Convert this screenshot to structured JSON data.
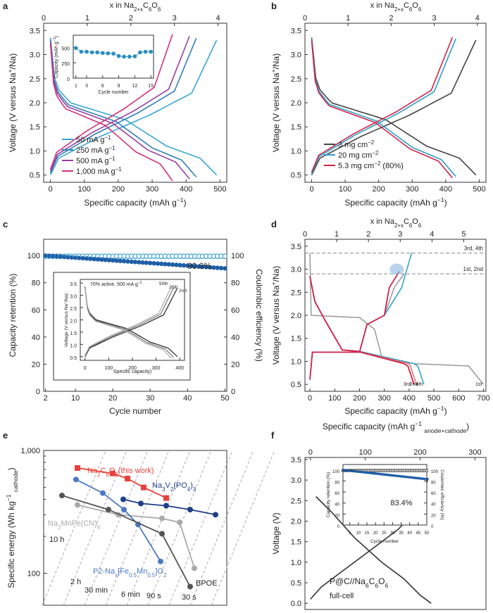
{
  "chart_data": [
    {
      "panel": "a",
      "type": "line",
      "top_axis": {
        "label": "x in Na2+xC6O6",
        "ticks": [
          0,
          1,
          2,
          3,
          4
        ],
        "range": [
          0,
          4.2
        ]
      },
      "xlabel": "Specific capacity (mAh g-1)",
      "ylabel": "Voltage (V versus Na+/Na)",
      "xlim": [
        -20,
        520
      ],
      "ylim": [
        0.35,
        3.65
      ],
      "xticks": [
        0,
        100,
        200,
        300,
        400,
        500
      ],
      "yticks": [
        0.5,
        1.0,
        1.5,
        2.0,
        2.5,
        3.0,
        3.5
      ],
      "legend": "bottom-left",
      "series": [
        {
          "name": "50 mA g-1",
          "color": "#3aa6d6",
          "capacity": 490
        },
        {
          "name": "250 mA g-1",
          "color": "#2f7fb8",
          "capacity": 430
        },
        {
          "name": "500 mA g-1",
          "color": "#9a3fa0",
          "capacity": 410
        },
        {
          "name": "1,000 mA g-1",
          "color": "#d2337c",
          "capacity": 360
        }
      ],
      "inset": {
        "type": "scatter",
        "xlabel": "Cycle number",
        "ylabel": "Capacity (mAh g-1)",
        "xticks": [
          1,
          3,
          6,
          9,
          12,
          15
        ],
        "yticks": [
          0,
          250,
          500
        ],
        "x": [
          1,
          2,
          3,
          4,
          5,
          6,
          7,
          8,
          9,
          10,
          11,
          12,
          13,
          14,
          15
        ],
        "y": [
          490,
          430,
          430,
          420,
          420,
          410,
          405,
          400,
          360,
          350,
          350,
          355,
          420,
          430,
          430
        ]
      }
    },
    {
      "panel": "b",
      "type": "line",
      "top_axis": {
        "label": "x in Na2+xC6O6",
        "ticks": [
          0,
          1,
          2,
          3,
          4
        ],
        "range": [
          0,
          4.2
        ]
      },
      "xlabel": "Specific capacity (mAh g-1)",
      "ylabel": "Voltage (V versus Na+/Na)",
      "xlim": [
        -20,
        520
      ],
      "ylim": [
        0.35,
        3.65
      ],
      "xticks": [
        0,
        100,
        200,
        300,
        400,
        500
      ],
      "yticks": [
        0.5,
        1.0,
        1.5,
        2.0,
        2.5,
        3.0,
        3.5
      ],
      "legend": "bottom-left",
      "series": [
        {
          "name": "3 mg cm-2",
          "color": "#444444",
          "capacity": 490
        },
        {
          "name": "20 mg cm-2",
          "color": "#2aa0c8",
          "capacity": 430
        },
        {
          "name": "5.3 mg cm-2 (80%)",
          "color": "#d2234a",
          "capacity": 420
        }
      ]
    },
    {
      "panel": "c",
      "type": "scatter",
      "xlabel": "Cycle number",
      "ylabel": "Capacity retention (%)",
      "y2label": "Coulombic efficiency (%)",
      "xlim": [
        1.5,
        50.5
      ],
      "ylim": [
        0,
        112
      ],
      "y2lim": [
        0,
        112
      ],
      "xticks": [
        2,
        10,
        20,
        30,
        40,
        50
      ],
      "yticks": [
        0,
        20,
        40,
        60,
        80,
        100
      ],
      "y2ticks": [
        0,
        20,
        40,
        60,
        80,
        100
      ],
      "annotation": "90.6%",
      "series": [
        {
          "name": "Capacity retention",
          "axis": "left",
          "color": "#1f5fa8",
          "start": 100,
          "end": 90.6
        },
        {
          "name": "Coulombic efficiency",
          "axis": "right",
          "color": "#4aa8cf",
          "value": 99.5
        }
      ],
      "inset": {
        "label": "70% active, 500 mA g-1",
        "xlabel": "Specific capacity (mAh g-1)",
        "ylabel": "Voltage (V versus Na+/Na)",
        "xticks": [
          0,
          100,
          200,
          300,
          400
        ],
        "yticks": [
          0.5,
          1.0,
          1.5,
          2.0,
          2.5,
          3.0,
          3.5
        ],
        "series": [
          {
            "name": "2nd",
            "color": "#222222",
            "capacity": 390
          },
          {
            "name": "25th",
            "color": "#777777",
            "capacity": 375
          },
          {
            "name": "50th",
            "color": "#aaaaaa",
            "capacity": 365
          }
        ]
      }
    },
    {
      "panel": "d",
      "type": "line",
      "top_axis": {
        "label": "x in Na2+xC6O6",
        "ticks": [
          0,
          1,
          2,
          3,
          4,
          5
        ],
        "range": [
          0,
          5.7
        ]
      },
      "xlabel": "Specific capacity (mAh g-1)",
      "ylabel": "Voltage (V versus Na+/Na)",
      "xlim": [
        -20,
        710
      ],
      "ylim": [
        0.35,
        3.65
      ],
      "xticks": [
        0,
        100,
        200,
        300,
        400,
        500,
        600,
        700
      ],
      "yticks": [
        0.5,
        1.0,
        1.5,
        2.0,
        2.5,
        3.0,
        3.5
      ],
      "guides": [
        {
          "y": 3.35,
          "label": "3rd, 4th"
        },
        {
          "y": 2.9,
          "label": "1st, 2nd"
        }
      ],
      "curve_labels": [
        "3rd",
        "2nd",
        "4th",
        "1st"
      ],
      "series": [
        {
          "name": "1st",
          "color": "#999999"
        },
        {
          "name": "2nd",
          "color": "#d2234a"
        },
        {
          "name": "3rd",
          "color": "#e07070"
        },
        {
          "name": "4th",
          "color": "#2aa0c8"
        }
      ]
    },
    {
      "panel": "e",
      "type": "scatter",
      "ylabel": "Specific energy (Wh kg-1 cathode)",
      "yscale": "log",
      "ylim": [
        55,
        1000
      ],
      "yticks": [
        100,
        1000
      ],
      "ytick_labels": [
        "100",
        "1,000"
      ],
      "rate_lines": [
        "10 h",
        "2 h",
        "30 min",
        "6 min",
        "90 s",
        "30 s"
      ],
      "series": [
        {
          "name": "Na2C6O6 (this work)",
          "color": "#e8413c",
          "marker": "square",
          "values": [
            720,
            650,
            590,
            500,
            410
          ]
        },
        {
          "name": "Na3V2(PO4)3",
          "color": "#1f3f8a",
          "marker": "circle",
          "values": [
            400,
            370,
            355,
            330,
            300
          ]
        },
        {
          "name": "Na2MnFe(CN)6",
          "color": "#aaaaaa",
          "marker": "circle",
          "values": [
            360,
            300,
            280,
            260,
            110
          ]
        },
        {
          "name": "P2-Nax[Fe0.5Mn0.5]O2",
          "color": "#4a78c4",
          "marker": "circle",
          "values": [
            580,
            450,
            330,
            250,
            125
          ]
        },
        {
          "name": "BPOE",
          "color": "#555555",
          "marker": "circle",
          "values": [
            430,
            330,
            210,
            78
          ]
        }
      ]
    },
    {
      "panel": "f",
      "type": "line",
      "top_axis": {
        "label": "Specific capacity (mAh g-1 anode+cathode)",
        "ticks": [
          0,
          100,
          200,
          300
        ],
        "range": [
          -10,
          320
        ]
      },
      "ylabel": "Voltage (V)",
      "ylim": [
        -0.15,
        3.55
      ],
      "yticks": [
        0.0,
        0.5,
        1.0,
        1.5,
        2.0,
        2.5,
        3.0,
        3.5
      ],
      "label": "P@C//Na6C6O6 full-cell",
      "series": [
        {
          "name": "full-cell",
          "color": "#333333"
        }
      ],
      "inset": {
        "xlabel": "Cycle number",
        "ylabel": "Capacity retention (%)",
        "y2label": "Coulombic efficiency (%)",
        "xticks": [
          5,
          10,
          15,
          20,
          25,
          30,
          35,
          40,
          45,
          50
        ],
        "yticks": [
          0,
          20,
          40,
          60,
          80,
          100
        ],
        "annotation": "83.4%",
        "series": [
          {
            "name": "Capacity retention",
            "color": "#1f5fa8",
            "start": 100,
            "end": 83.4
          },
          {
            "name": "Coulombic efficiency",
            "color": "#222222",
            "value": 99
          }
        ]
      }
    }
  ],
  "labels": {
    "a": "a",
    "b": "b",
    "c": "c",
    "d": "d",
    "e": "e",
    "f": "f",
    "a_top": "x in Na",
    "a_top_sub1": "2+x",
    "a_top_mid": "C",
    "a_top_sub2": "6",
    "a_top_end": "O",
    "a_top_sub3": "6",
    "vlabel": "Voltage (V versus Na",
    "cap_x": "Specific capacity (mAh g",
    "legend_a": [
      "50 mA g",
      "250 mA g",
      "500 mA g",
      "1,000 mA g"
    ],
    "legend_b": [
      "3 mg cm",
      "20 mg cm",
      "5.3 mg cm"
    ],
    "legend_b3_tail": " (80%)",
    "inset_a_x": "Cycle number",
    "inset_a_y": "Capacity (mAh g",
    "c_y": "Capacity retention (%)",
    "c_y2": "Coulombic efficiency (%)",
    "c_x": "Cycle number",
    "c_ann": "90.6%",
    "c_inset_label": "70% active, 500 mA g",
    "c_inset_labels": [
      "50th",
      "25th",
      "2nd"
    ],
    "d_guide1": "3rd, 4th",
    "d_guide2": "1st, 2nd",
    "d_bottom_labels": [
      "3rd",
      "2nd",
      "4th",
      "1st"
    ],
    "e_y": "Specific energy (Wh kg",
    "e_y_sub": "cathode",
    "e_rates": [
      "10 h",
      "2 h",
      "30 min",
      "6 min",
      "90 s",
      "30 s"
    ],
    "e_na2c6o6": "Na",
    "e_this_work": "(this work)",
    "e_nvp": "Na",
    "e_nmf": "Na",
    "e_p2": "P2-Na",
    "e_bpoe": "BPOE",
    "f_top": "Specific capacity (mAh g",
    "f_top_sub": "anode+cathode",
    "f_y": "Voltage (V)",
    "f_label1": "P@C//Na",
    "f_label2": "full-cell",
    "f_ann": "83.4%",
    "f_inset_x": "Cycle number",
    "f_inset_y": "Capacity retention (%)",
    "f_inset_y2": "Coulombic efficiency (%)"
  }
}
